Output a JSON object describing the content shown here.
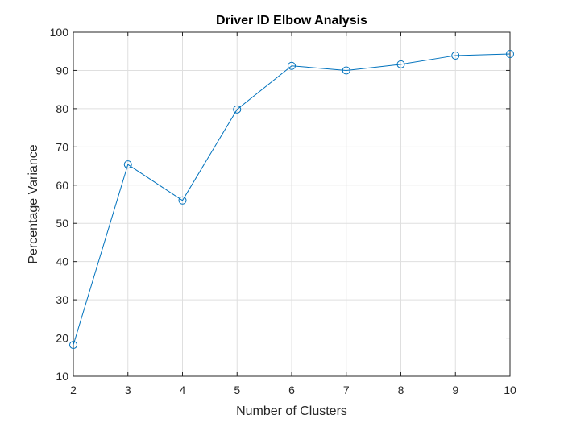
{
  "chart_data": {
    "type": "line",
    "title": "Driver ID Elbow Analysis",
    "xlabel": "Number of Clusters",
    "ylabel": "Percentage Variance",
    "xlim": [
      2,
      10
    ],
    "ylim": [
      10,
      100
    ],
    "xticks": [
      2,
      3,
      4,
      5,
      6,
      7,
      8,
      9,
      10
    ],
    "yticks": [
      10,
      20,
      30,
      40,
      50,
      60,
      70,
      80,
      90,
      100
    ],
    "grid": true,
    "marker": "circle",
    "color": "#0072BD",
    "series": [
      {
        "x": [
          2,
          3,
          4,
          5,
          6,
          7,
          8,
          9,
          10
        ],
        "values": [
          18.2,
          65.4,
          56.0,
          79.8,
          91.2,
          90.0,
          91.6,
          93.9,
          94.3
        ]
      }
    ]
  }
}
